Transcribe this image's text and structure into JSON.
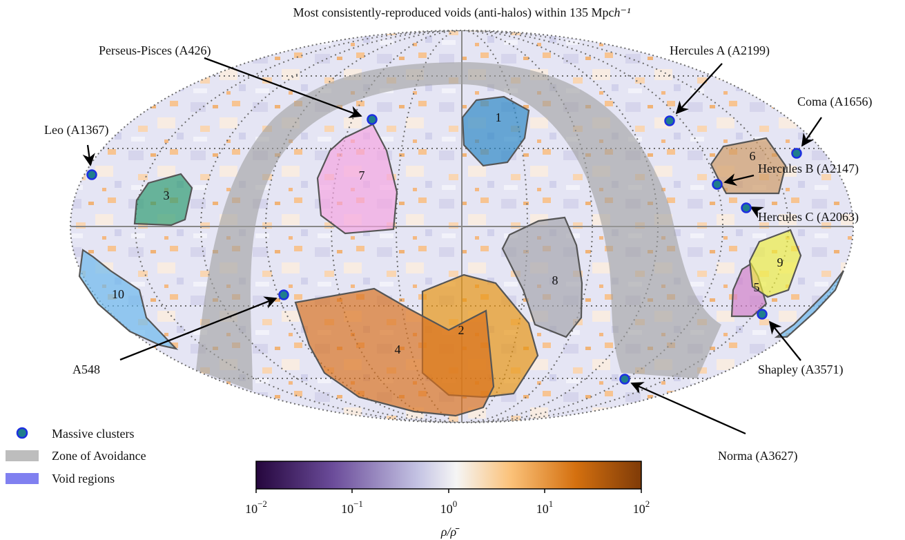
{
  "chart_data": {
    "type": "sky-map",
    "title": "Most consistently-reproduced voids (anti-halos) within 135 Mpc",
    "title_unit_sup": "h⁻¹",
    "projection": "Mollweide",
    "grid": true,
    "voids": [
      {
        "label": "1",
        "color": "#2a86c4"
      },
      {
        "label": "2",
        "color": "#e8930f"
      },
      {
        "label": "3",
        "color": "#2b9b6e"
      },
      {
        "label": "4",
        "color": "#d8701c"
      },
      {
        "label": "5",
        "color": "#d27fc7"
      },
      {
        "label": "6",
        "color": "#cf9a63"
      },
      {
        "label": "7",
        "color": "#f4a4e0"
      },
      {
        "label": "8",
        "color": "#a3a3ab"
      },
      {
        "label": "9",
        "color": "#eded3f"
      },
      {
        "label": "10",
        "color": "#69b7ec"
      }
    ],
    "clusters": [
      {
        "name": "Perseus-Pisces (A426)"
      },
      {
        "name": "Hercules A (A2199)"
      },
      {
        "name": "Coma (A1656)"
      },
      {
        "name": "Leo (A1367)"
      },
      {
        "name": "Hercules B (A2147)"
      },
      {
        "name": "Hercules C (A2063)"
      },
      {
        "name": "A548"
      },
      {
        "name": "Shapley (A3571)"
      },
      {
        "name": "Norma (A3627)"
      }
    ],
    "legend": {
      "placement": "bottom-left",
      "items": [
        {
          "label": "Massive clusters",
          "color": "#1f7e8c"
        },
        {
          "label": "Zone of Avoidance",
          "color": "#bdbdbd"
        },
        {
          "label": "Void regions",
          "color": "#8080f0"
        }
      ]
    },
    "colorbar": {
      "label": "ρ/ρ̄",
      "scale": "log",
      "range": [
        0.01,
        100
      ],
      "ticks": [
        {
          "base": "10",
          "exp": "−2"
        },
        {
          "base": "10",
          "exp": "−1"
        },
        {
          "base": "10",
          "exp": "0"
        },
        {
          "base": "10",
          "exp": "1"
        },
        {
          "base": "10",
          "exp": "2"
        }
      ],
      "colors": [
        "#25063d",
        "#6b4c9a",
        "#c4c3e3",
        "#f5f5f5",
        "#fbc27a",
        "#d4700f",
        "#7f3b08"
      ]
    }
  }
}
